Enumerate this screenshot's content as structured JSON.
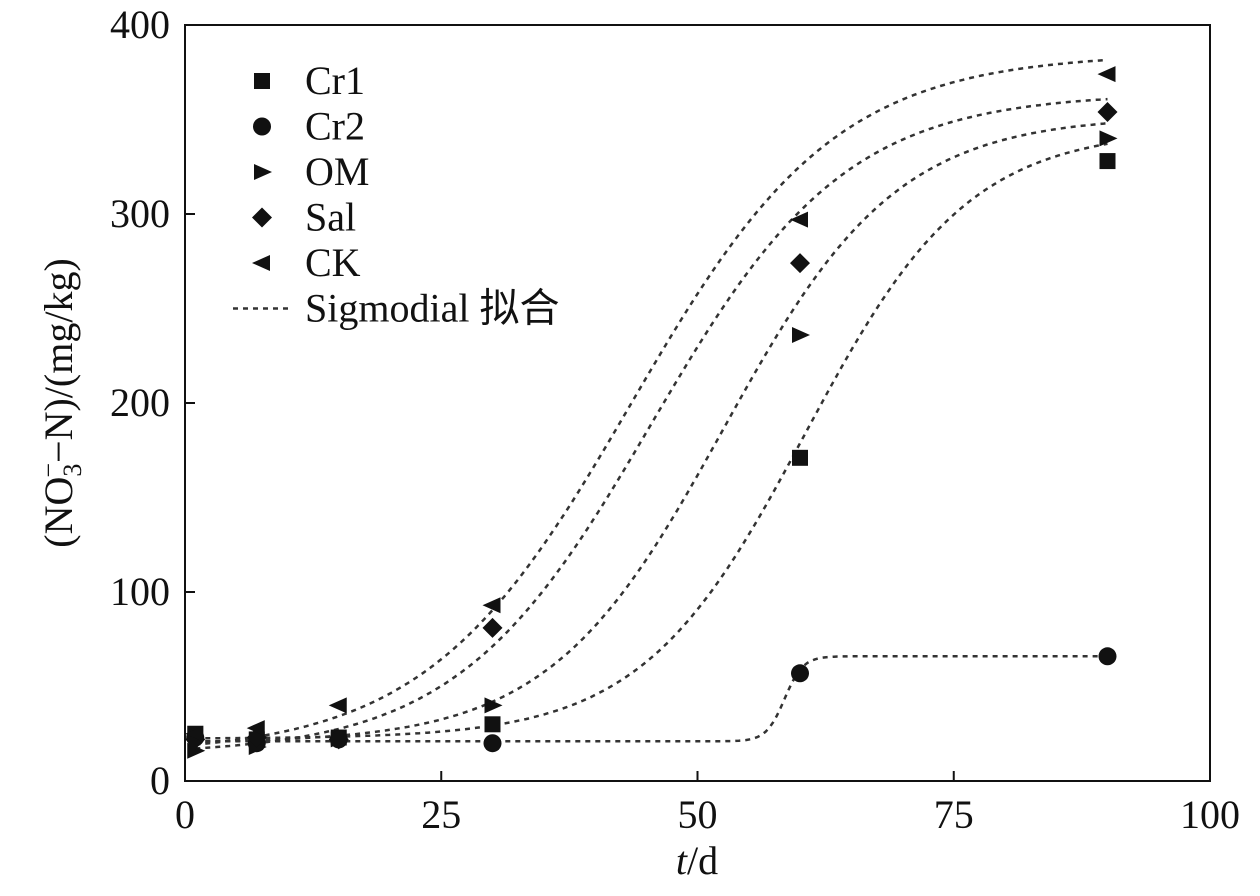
{
  "chart_data": {
    "type": "scatter",
    "xlabel_var": "t",
    "xlabel_unit": "/d",
    "ylabel": "(NO3−N)/(mg/kg)",
    "ylabel_parts": {
      "open": "(NO",
      "sub": "3",
      "sup": "−",
      "rest": "−N)/(mg/kg)"
    },
    "xlim": [
      0,
      100
    ],
    "ylim": [
      0,
      400
    ],
    "xticks": [
      "0",
      "25",
      "50",
      "75",
      "100"
    ],
    "yticks": [
      "0",
      "100",
      "200",
      "300",
      "400"
    ],
    "grid": false,
    "legend_position": "top-left",
    "fit_label": "Sigmodial 拟合",
    "colors": {
      "marker": "#111111",
      "fit_line": "#333333",
      "axis": "#111111"
    },
    "series": [
      {
        "name": "Cr1",
        "marker": "square",
        "x": [
          1,
          7,
          15,
          30,
          60,
          90
        ],
        "y": [
          25,
          22,
          23,
          30,
          171,
          328
        ],
        "fit": {
          "min": 22.4,
          "max": 345,
          "x0": 60.5,
          "dx": 8.0
        }
      },
      {
        "name": "Cr2",
        "marker": "circle",
        "x": [
          1,
          7,
          15,
          30,
          60,
          90
        ],
        "y": [
          23,
          20,
          22,
          20,
          57,
          66
        ],
        "fit": {
          "min": 21,
          "max": 66,
          "x0": 58.5,
          "dx": 0.9
        }
      },
      {
        "name": "OM",
        "marker": "triangle-right",
        "x": [
          1,
          7,
          15,
          30,
          60,
          90
        ],
        "y": [
          16,
          18,
          22,
          40,
          236,
          340
        ],
        "fit": {
          "min": 20,
          "max": 352,
          "x0": 52.5,
          "dx": 8.5
        }
      },
      {
        "name": "Sal",
        "marker": "diamond",
        "x": [
          1,
          7,
          15,
          30,
          60,
          90
        ],
        "y": [
          22,
          23,
          22,
          81,
          274,
          354
        ],
        "fit": {
          "min": 14,
          "max": 364,
          "x0": 45.5,
          "dx": 9.5
        }
      },
      {
        "name": "CK",
        "marker": "triangle-left",
        "x": [
          1,
          7,
          15,
          30,
          60,
          90
        ],
        "y": [
          25,
          28,
          40,
          93,
          297,
          374
        ],
        "fit": {
          "min": 14,
          "max": 385,
          "x0": 43.5,
          "dx": 10.0
        }
      }
    ]
  }
}
